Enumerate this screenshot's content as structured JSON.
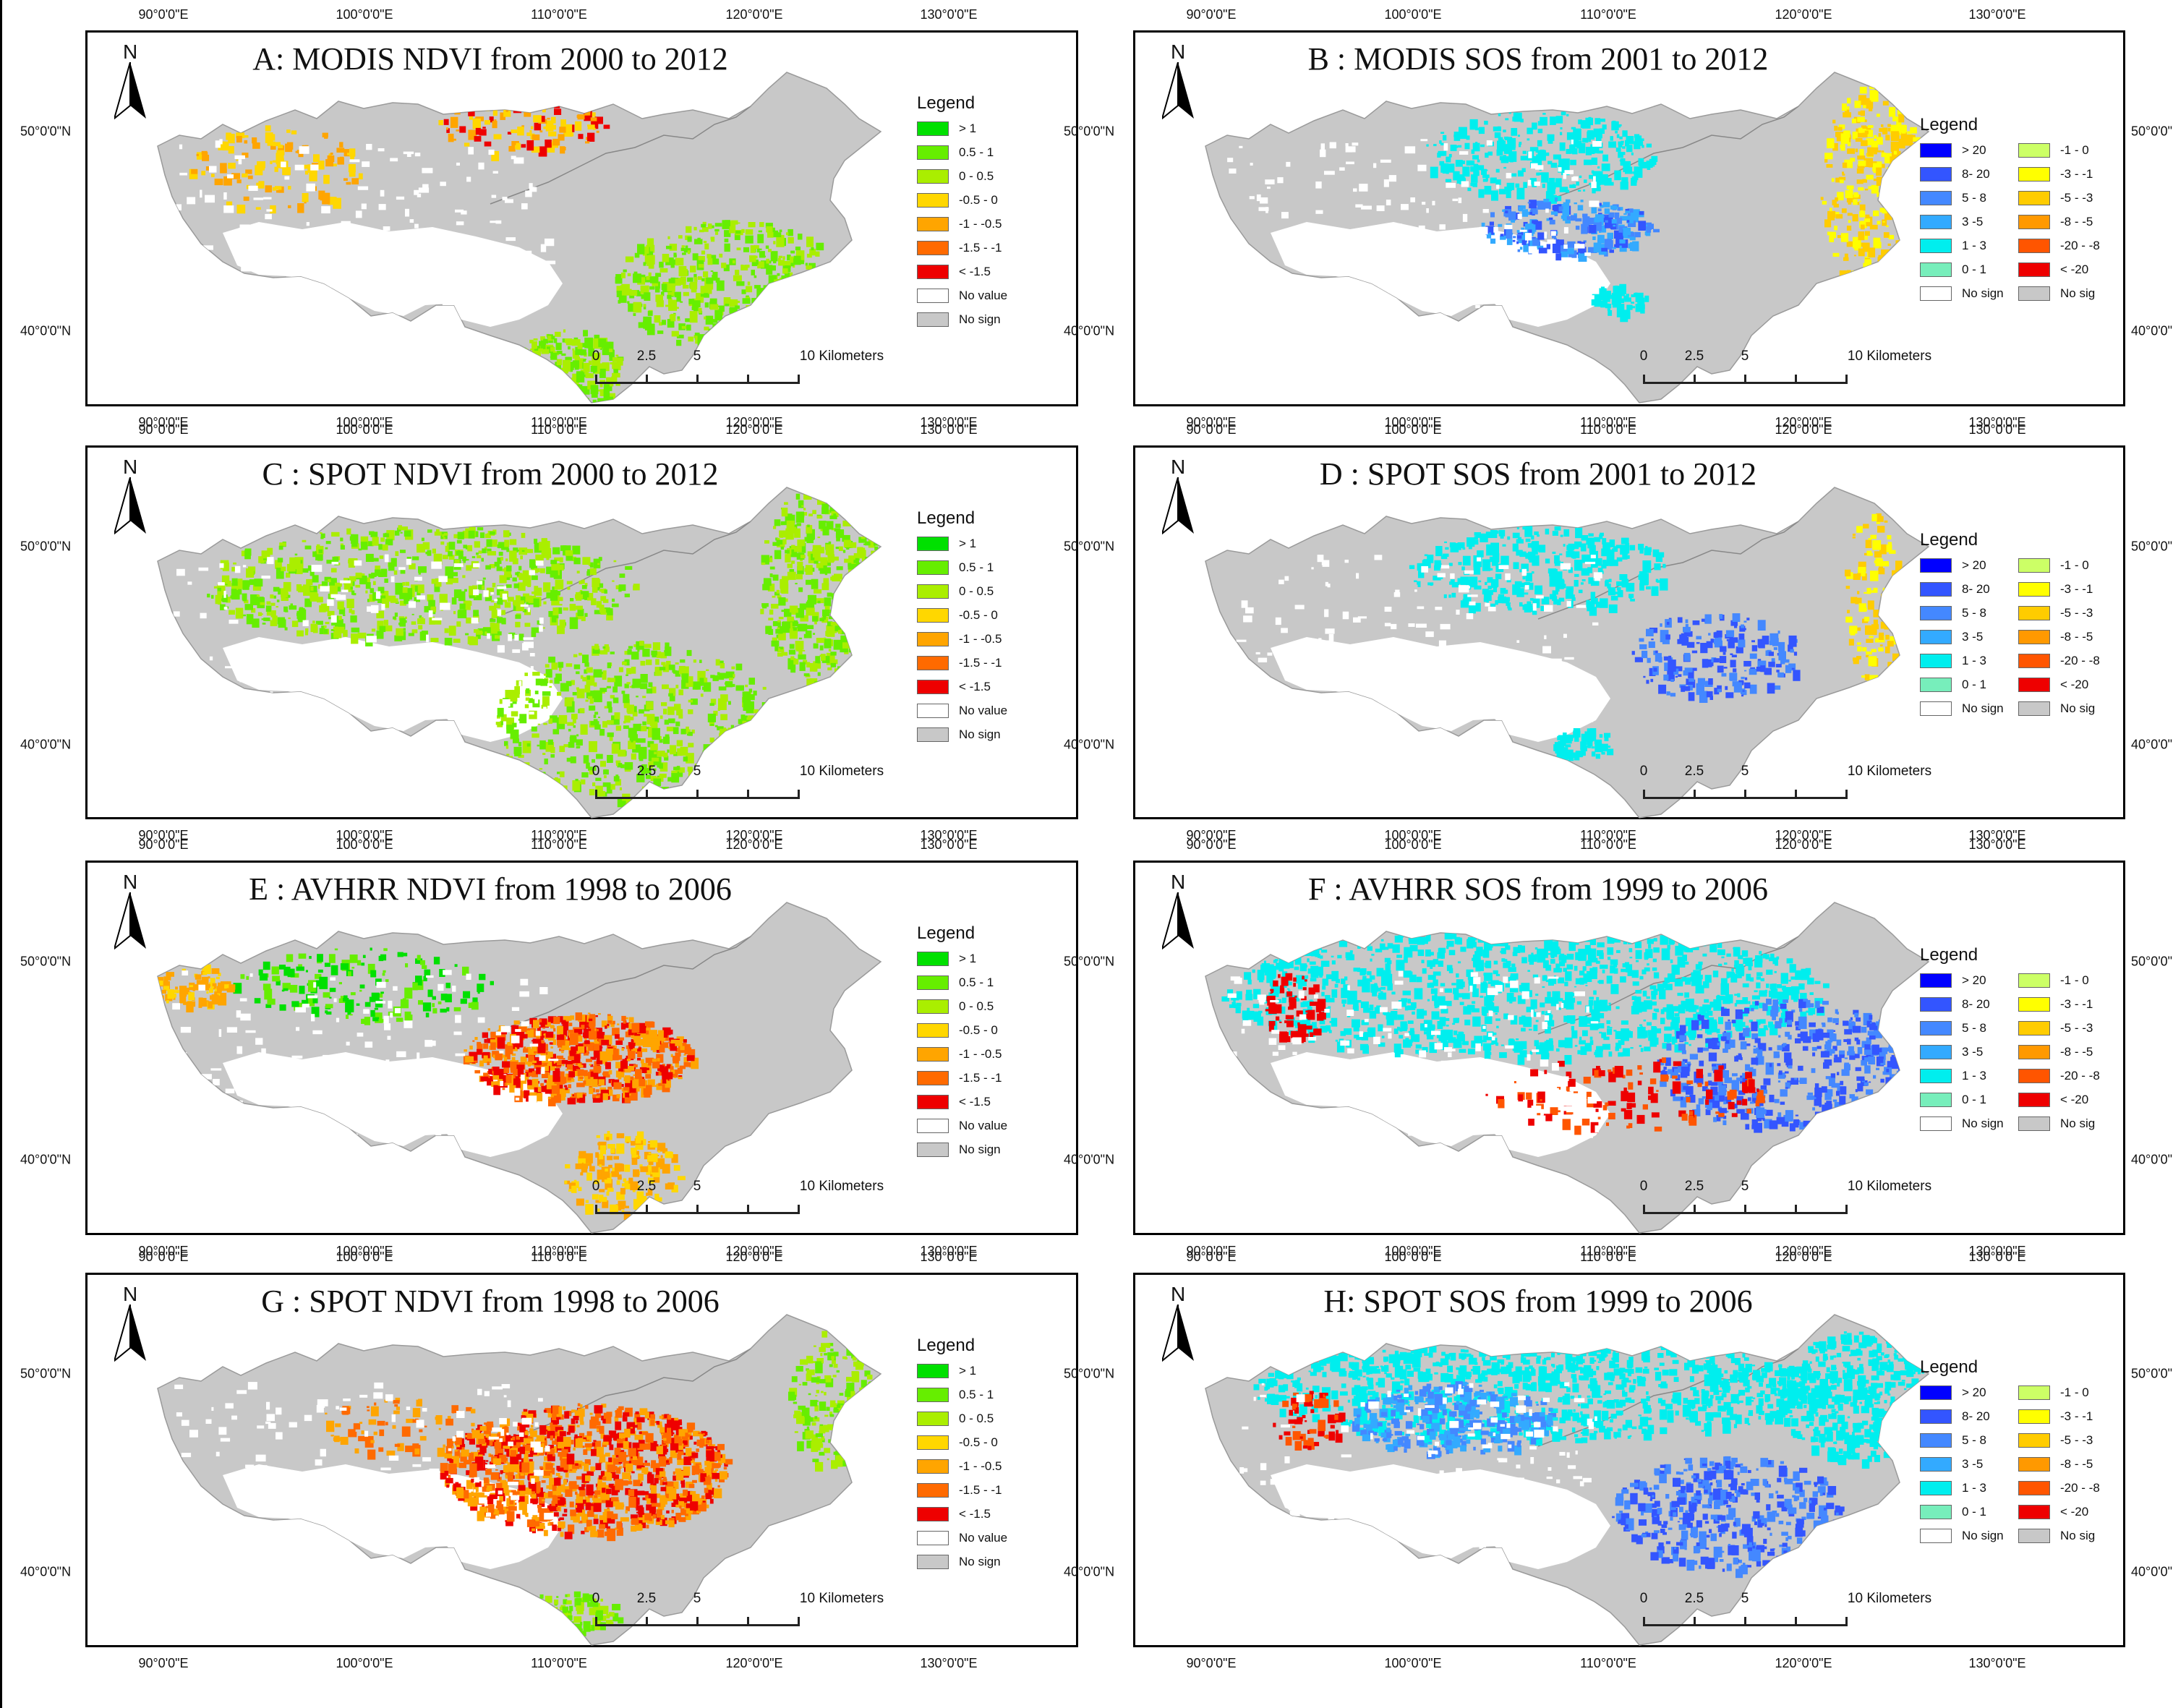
{
  "colors": {
    "no_sign": "#c8c8c8",
    "no_value": "#ffffff",
    "ndvi": [
      "#00e000",
      "#66ee00",
      "#aaee00",
      "#ffd700",
      "#ffa500",
      "#ff6a00",
      "#ee0000"
    ],
    "sos_left": [
      "#0000ff",
      "#3355ff",
      "#4488ff",
      "#33aaff",
      "#00eeee",
      "#77eebb"
    ],
    "sos_right": [
      "#ccff66",
      "#ffff00",
      "#ffcc00",
      "#ff9900",
      "#ff5500",
      "#ee0000"
    ]
  },
  "axes": {
    "lon_labels": [
      "90°0'0\"E",
      "100°0'0\"E",
      "110°0'0\"E",
      "120°0'0\"E",
      "130°0'0\"E"
    ],
    "lat_labels": [
      "50°0'0\"N",
      "40°0'0\"N"
    ]
  },
  "north_label": "N",
  "scalebar": {
    "labels": [
      "0",
      "2.5",
      "5",
      "10 Kilometers"
    ]
  },
  "legend_ndvi": {
    "title": "Legend",
    "items": [
      "> 1",
      "0.5 - 1",
      "0 - 0.5",
      "-0.5 - 0",
      "-1 - -0.5",
      "-1.5 - -1",
      "< -1.5",
      "No value",
      "No sign"
    ]
  },
  "legend_sos": {
    "title": "Legend",
    "left": [
      "> 20",
      "8- 20",
      "5 - 8",
      "3 -5",
      "1 - 3",
      "0 - 1",
      "No sign"
    ],
    "right": [
      "-1 - 0",
      "-3 - -1",
      "-5 - -3",
      "-8 - -5",
      "-20 - -8",
      "< -20",
      "No sig"
    ]
  },
  "panels": [
    {
      "id": "A",
      "title": "A: MODIS NDVI from 2000 to 2012",
      "type": "ndvi"
    },
    {
      "id": "B",
      "title": "B : MODIS SOS from 2001 to 2012",
      "type": "sos"
    },
    {
      "id": "C",
      "title": "C : SPOT NDVI from 2000 to 2012",
      "type": "ndvi"
    },
    {
      "id": "D",
      "title": "D : SPOT SOS from 2001 to 2012",
      "type": "sos"
    },
    {
      "id": "E",
      "title": "E : AVHRR NDVI from 1998 to 2006",
      "type": "ndvi"
    },
    {
      "id": "F",
      "title": "F : AVHRR SOS from 1999 to 2006",
      "type": "sos"
    },
    {
      "id": "G",
      "title": "G : SPOT NDVI from 1998 to 2006",
      "type": "ndvi"
    },
    {
      "id": "H",
      "title": "H: SPOT SOS from 1999 to 2006",
      "type": "sos"
    }
  ]
}
